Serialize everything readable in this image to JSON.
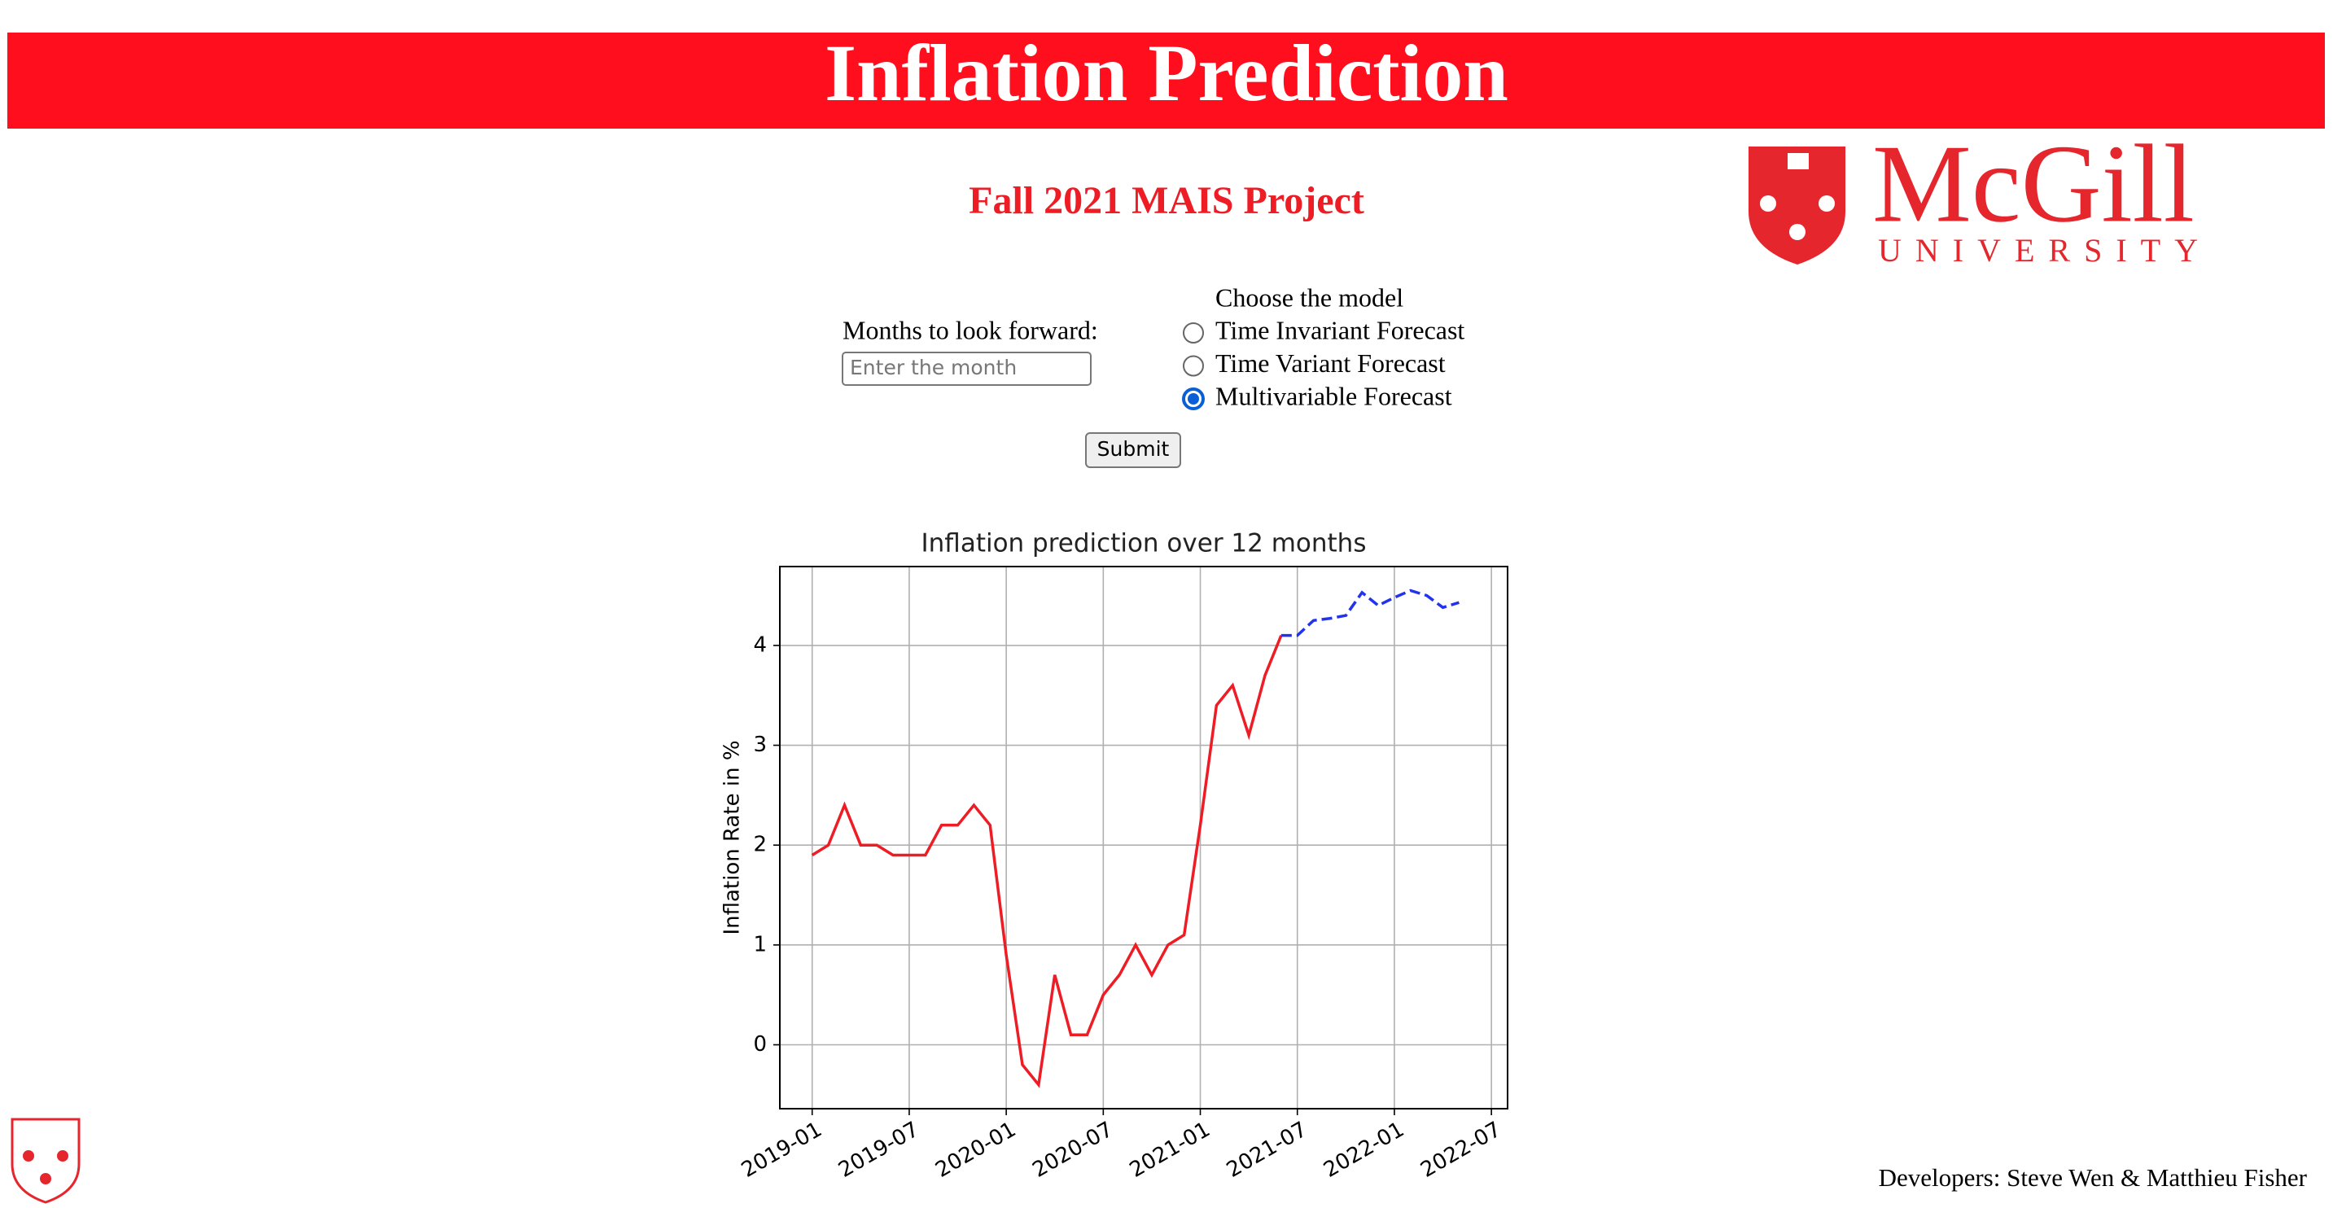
{
  "header": {
    "title": "Inflation Prediction",
    "subtitle": "Fall 2021 MAIS Project"
  },
  "logo": {
    "name": "McGill",
    "sub": "UNIVERSITY"
  },
  "form": {
    "months_label": "Months to look forward:",
    "months_placeholder": "Enter the month",
    "model_label": "Choose the model",
    "options": [
      "Time Invariant Forecast",
      "Time Variant Forecast",
      "Multivariable Forecast"
    ],
    "selected": 2,
    "submit": "Submit"
  },
  "chart_data": {
    "type": "line",
    "title": "Inflation prediction over 12 months",
    "y_label": "Inflation Rate in %",
    "x": [
      "2019-01",
      "2019-02",
      "2019-03",
      "2019-04",
      "2019-05",
      "2019-06",
      "2019-07",
      "2019-08",
      "2019-09",
      "2019-10",
      "2019-11",
      "2019-12",
      "2020-01",
      "2020-02",
      "2020-03",
      "2020-04",
      "2020-05",
      "2020-06",
      "2020-07",
      "2020-08",
      "2020-09",
      "2020-10",
      "2020-11",
      "2020-12",
      "2021-01",
      "2021-02",
      "2021-03",
      "2021-04",
      "2021-05",
      "2021-06",
      "2021-07",
      "2021-08",
      "2021-09",
      "2021-10",
      "2021-11",
      "2021-12",
      "2022-01",
      "2022-02",
      "2022-03",
      "2022-04",
      "2022-05"
    ],
    "series": [
      {
        "color": "#ee1c25",
        "dashed": false,
        "values": [
          1.9,
          2.0,
          2.4,
          2.0,
          2.0,
          1.9,
          1.9,
          1.9,
          2.2,
          2.2,
          2.4,
          2.2,
          0.9,
          -0.2,
          -0.4,
          0.7,
          0.1,
          0.1,
          0.5,
          0.7,
          1.0,
          0.7,
          1.0,
          1.1,
          2.2,
          3.4,
          3.6,
          3.1,
          3.7,
          4.1,
          null,
          null,
          null,
          null,
          null,
          null,
          null,
          null,
          null,
          null,
          null
        ]
      },
      {
        "color": "#2233ee",
        "dashed": true,
        "values": [
          null,
          null,
          null,
          null,
          null,
          null,
          null,
          null,
          null,
          null,
          null,
          null,
          null,
          null,
          null,
          null,
          null,
          null,
          null,
          null,
          null,
          null,
          null,
          null,
          null,
          null,
          null,
          null,
          null,
          4.1,
          4.1,
          4.25,
          4.27,
          4.3,
          4.53,
          4.4,
          4.48,
          4.55,
          4.5,
          4.38,
          4.43
        ]
      }
    ],
    "xlim": [
      "2018-11",
      "2022-08"
    ],
    "xticks": [
      "2019-01",
      "2019-07",
      "2020-01",
      "2020-07",
      "2021-01",
      "2021-07",
      "2022-01",
      "2022-07"
    ],
    "ylim": [
      -0.64,
      4.79
    ],
    "yticks": [
      0,
      1,
      2,
      3,
      4
    ],
    "grid": true
  },
  "footer": "Developers: Steve Wen & Matthieu Fisher"
}
